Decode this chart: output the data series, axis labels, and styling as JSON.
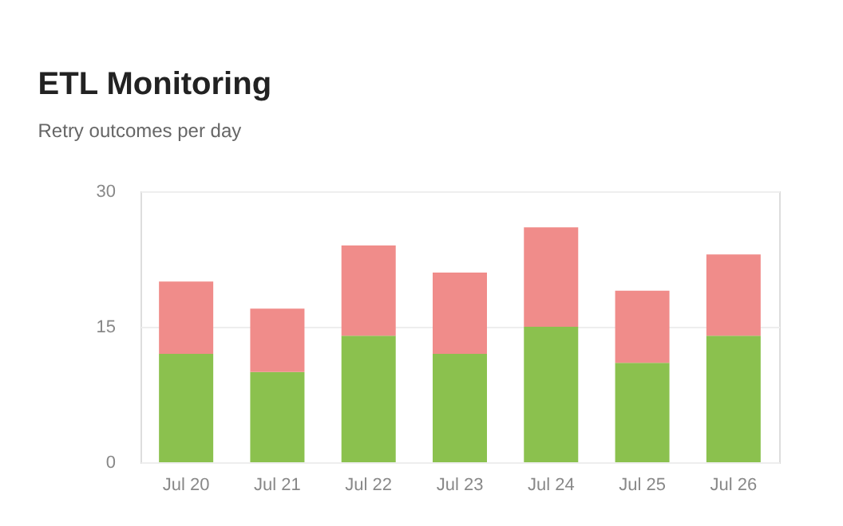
{
  "chart_data": {
    "type": "bar",
    "title": "ETL Monitoring",
    "subtitle": "Retry outcomes per day",
    "categories": [
      "Jul 20",
      "Jul 21",
      "Jul 22",
      "Jul 23",
      "Jul 24",
      "Jul 25",
      "Jul 26"
    ],
    "series": [
      {
        "color": "#8bc14e",
        "values": [
          12,
          10,
          14,
          12,
          15,
          11,
          14
        ]
      },
      {
        "color": "#f08c8a",
        "values": [
          8,
          7,
          10,
          9,
          11,
          8,
          9
        ]
      }
    ],
    "stacked": true,
    "ylim": [
      0,
      30
    ],
    "yticks": [
      0,
      15,
      30
    ],
    "grid": "y",
    "legend": false
  }
}
